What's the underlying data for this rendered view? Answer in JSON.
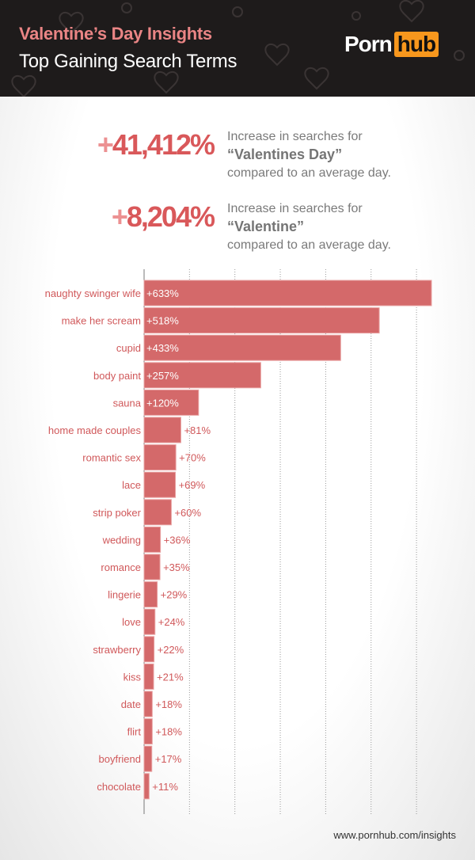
{
  "header": {
    "title": "Valentine’s Day Insights",
    "subtitle": "Top Gaining Search Terms",
    "logo": {
      "left": "Porn",
      "right": "hub"
    }
  },
  "stats": [
    {
      "value": "41,412%",
      "plus": "+",
      "line1": "Increase in searches for",
      "term": "“Valentines Day”",
      "line3": "compared to an average day."
    },
    {
      "value": "8,204%",
      "plus": "+",
      "line1": "Increase in searches for",
      "term": "“Valentine”",
      "line3": "compared to an average day."
    }
  ],
  "footer": "www.pornhub.com/insights",
  "colors": {
    "bar": "#d4696a",
    "header_bg": "#1e1b1b",
    "title_pink": "#ea8585",
    "logo_orange": "#f7971d"
  },
  "chart_data": {
    "type": "bar",
    "orientation": "horizontal",
    "grid": true,
    "xlim": [
      0,
      640
    ],
    "categories": [
      "naughty swinger wife",
      "make her scream",
      "cupid",
      "body paint",
      "sauna",
      "home made couples",
      "romantic sex",
      "lace",
      "strip poker",
      "wedding",
      "romance",
      "lingerie",
      "love",
      "strawberry",
      "kiss",
      "date",
      "flirt",
      "boyfriend",
      "chocolate"
    ],
    "values": [
      633,
      518,
      433,
      257,
      120,
      81,
      70,
      69,
      60,
      36,
      35,
      29,
      24,
      22,
      21,
      18,
      18,
      17,
      11
    ],
    "labels": [
      "+633%",
      "+518%",
      "+433%",
      "+257%",
      "+120%",
      "+81%",
      "+70%",
      "+69%",
      "+60%",
      "+36%",
      "+35%",
      "+29%",
      "+24%",
      "+22%",
      "+21%",
      "+18%",
      "+18%",
      "+17%",
      "+11%"
    ]
  }
}
